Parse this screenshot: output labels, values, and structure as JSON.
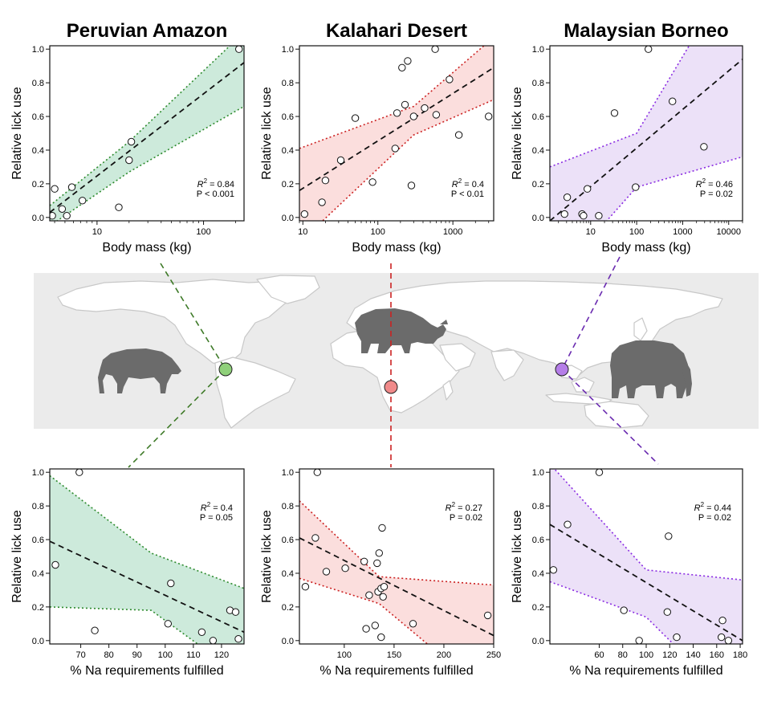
{
  "chart_data": [
    {
      "type": "scatter",
      "title": "Peruvian Amazon",
      "xlabel": "Body mass (kg)",
      "ylabel": "Relative lick use",
      "xscale": "log",
      "xlim": [
        3.6,
        240
      ],
      "ylim": [
        -0.02,
        1.02
      ],
      "xticks": [
        10,
        100
      ],
      "yticks": [
        0.0,
        0.2,
        0.4,
        0.6,
        0.8,
        1.0
      ],
      "ytick_labels": [
        "0.0",
        "0.2",
        "0.4",
        "0.6",
        "0.8",
        "1.0"
      ],
      "points": [
        [
          3.8,
          0.01
        ],
        [
          4.0,
          0.17
        ],
        [
          4.7,
          0.05
        ],
        [
          5.2,
          0.01
        ],
        [
          5.8,
          0.18
        ],
        [
          7.3,
          0.1
        ],
        [
          16,
          0.06
        ],
        [
          20,
          0.34
        ],
        [
          21,
          0.45
        ],
        [
          215,
          1.0
        ]
      ],
      "fit": [
        [
          3.6,
          0.03
        ],
        [
          240,
          0.92
        ]
      ],
      "ci_upper": [
        [
          3.6,
          0.07
        ],
        [
          20,
          0.45
        ],
        [
          240,
          1.1
        ]
      ],
      "ci_lower": [
        [
          3.6,
          -0.05
        ],
        [
          20,
          0.27
        ],
        [
          240,
          0.66
        ]
      ],
      "stat_r2": "0.84",
      "stat_p": "P < 0.001",
      "color": "#2e8b2e",
      "fill": "#cdeadb"
    },
    {
      "type": "scatter",
      "title": "Kalahari Desert",
      "xlabel": "Body mass (kg)",
      "ylabel": "Relative lick use",
      "xscale": "log",
      "xlim": [
        9,
        3500
      ],
      "ylim": [
        -0.02,
        1.02
      ],
      "xticks": [
        10,
        100,
        1000
      ],
      "yticks": [
        0.0,
        0.2,
        0.4,
        0.6,
        0.8,
        1.0
      ],
      "ytick_labels": [
        "0.0",
        "0.2",
        "0.4",
        "0.6",
        "0.8",
        "1.0"
      ],
      "points": [
        [
          10.5,
          0.02
        ],
        [
          18,
          0.09
        ],
        [
          20,
          0.22
        ],
        [
          32,
          0.34
        ],
        [
          50,
          0.59
        ],
        [
          85,
          0.21
        ],
        [
          170,
          0.41
        ],
        [
          180,
          0.62
        ],
        [
          210,
          0.89
        ],
        [
          230,
          0.67
        ],
        [
          250,
          0.93
        ],
        [
          280,
          0.19
        ],
        [
          300,
          0.6
        ],
        [
          420,
          0.65
        ],
        [
          580,
          1.0
        ],
        [
          600,
          0.61
        ],
        [
          900,
          0.82
        ],
        [
          1200,
          0.49
        ],
        [
          3000,
          0.6
        ]
      ],
      "fit": [
        [
          9,
          0.16
        ],
        [
          3500,
          0.89
        ]
      ],
      "ci_upper": [
        [
          9,
          0.41
        ],
        [
          300,
          0.66
        ],
        [
          3500,
          1.07
        ]
      ],
      "ci_lower": [
        [
          9,
          -0.15
        ],
        [
          300,
          0.49
        ],
        [
          3500,
          0.7
        ]
      ],
      "stat_r2": "0.4",
      "stat_p": "P < 0.01",
      "color": "#cc2222",
      "fill": "#fbdedd"
    },
    {
      "type": "scatter",
      "title": "Malaysian Borneo",
      "xlabel": "Body mass (kg)",
      "ylabel": "Relative lick use",
      "xscale": "log",
      "xlim": [
        1.3,
        20000
      ],
      "ylim": [
        -0.02,
        1.02
      ],
      "xticks": [
        10,
        100,
        1000,
        10000
      ],
      "yticks": [
        0.0,
        0.2,
        0.4,
        0.6,
        0.8,
        1.0
      ],
      "ytick_labels": [
        "0.0",
        "0.2",
        "0.4",
        "0.6",
        "0.8",
        "1.0"
      ],
      "points": [
        [
          2.7,
          0.02
        ],
        [
          3.1,
          0.12
        ],
        [
          6.5,
          0.02
        ],
        [
          7.0,
          0.01
        ],
        [
          8.5,
          0.17
        ],
        [
          15,
          0.01
        ],
        [
          33,
          0.62
        ],
        [
          95,
          0.18
        ],
        [
          180,
          1.0
        ],
        [
          600,
          0.69
        ],
        [
          2900,
          0.42
        ]
      ],
      "fit": [
        [
          1.3,
          -0.02
        ],
        [
          20000,
          0.94
        ]
      ],
      "ci_upper": [
        [
          1.3,
          0.3
        ],
        [
          100,
          0.5
        ],
        [
          20000,
          1.55
        ]
      ],
      "ci_lower": [
        [
          1.3,
          -0.4
        ],
        [
          100,
          0.18
        ],
        [
          20000,
          0.36
        ]
      ],
      "stat_r2": "0.46",
      "stat_p": "P = 0.02",
      "color": "#8a2be2",
      "fill": "#ece1f8"
    },
    {
      "type": "scatter",
      "xlabel": "% Na requirements fulfilled",
      "ylabel": "Relative lick use",
      "xscale": "linear",
      "xlim": [
        59,
        128
      ],
      "ylim": [
        -0.02,
        1.02
      ],
      "xticks": [
        70,
        80,
        90,
        100,
        110,
        120
      ],
      "yticks": [
        0.0,
        0.2,
        0.4,
        0.6,
        0.8,
        1.0
      ],
      "ytick_labels": [
        "0.0",
        "0.2",
        "0.4",
        "0.6",
        "0.8",
        "1.0"
      ],
      "points": [
        [
          61,
          0.45
        ],
        [
          69.5,
          1.0
        ],
        [
          75,
          0.06
        ],
        [
          101,
          0.1
        ],
        [
          102,
          0.34
        ],
        [
          113,
          0.05
        ],
        [
          117,
          0.0
        ],
        [
          123,
          0.18
        ],
        [
          125,
          0.17
        ],
        [
          126,
          0.01
        ]
      ],
      "fit": [
        [
          59,
          0.59
        ],
        [
          128,
          0.05
        ]
      ],
      "ci_upper": [
        [
          59,
          0.98
        ],
        [
          95,
          0.52
        ],
        [
          128,
          0.31
        ]
      ],
      "ci_lower": [
        [
          59,
          0.2
        ],
        [
          95,
          0.18
        ],
        [
          128,
          -0.22
        ]
      ],
      "stat_r2": "0.4",
      "stat_p": "P = 0.05",
      "color": "#2e8b2e",
      "fill": "#cdeadb"
    },
    {
      "type": "scatter",
      "xlabel": "% Na requirements fulfilled",
      "ylabel": "Relative lick use",
      "xscale": "linear",
      "xlim": [
        55,
        250
      ],
      "ylim": [
        -0.02,
        1.02
      ],
      "xticks": [
        100,
        150,
        200,
        250
      ],
      "yticks": [
        0.0,
        0.2,
        0.4,
        0.6,
        0.8,
        1.0
      ],
      "ytick_labels": [
        "0.0",
        "0.2",
        "0.4",
        "0.6",
        "0.8",
        "1.0"
      ],
      "points": [
        [
          61,
          0.32
        ],
        [
          71,
          0.61
        ],
        [
          73,
          1.0
        ],
        [
          82,
          0.41
        ],
        [
          101,
          0.43
        ],
        [
          120,
          0.47
        ],
        [
          122,
          0.07
        ],
        [
          125,
          0.27
        ],
        [
          131,
          0.09
        ],
        [
          133,
          0.46
        ],
        [
          134,
          0.29
        ],
        [
          135,
          0.52
        ],
        [
          137,
          0.31
        ],
        [
          137,
          0.02
        ],
        [
          138,
          0.67
        ],
        [
          139,
          0.26
        ],
        [
          140,
          0.32
        ],
        [
          169,
          0.1
        ],
        [
          244,
          0.15
        ]
      ],
      "fit": [
        [
          55,
          0.61
        ],
        [
          250,
          0.03
        ]
      ],
      "ci_upper": [
        [
          55,
          0.83
        ],
        [
          135,
          0.38
        ],
        [
          250,
          0.33
        ]
      ],
      "ci_lower": [
        [
          55,
          0.37
        ],
        [
          135,
          0.22
        ],
        [
          250,
          -0.35
        ]
      ],
      "stat_r2": "0.27",
      "stat_p": "P = 0.02",
      "color": "#cc2222",
      "fill": "#fbdedd"
    },
    {
      "type": "scatter",
      "xlabel": "% Na requirements fulfilled",
      "ylabel": "Relative lick use",
      "xscale": "linear",
      "xlim": [
        18,
        182
      ],
      "ylim": [
        -0.02,
        1.02
      ],
      "xticks": [
        60,
        80,
        100,
        120,
        140,
        160,
        180
      ],
      "yticks": [
        0.0,
        0.2,
        0.4,
        0.6,
        0.8,
        1.0
      ],
      "ytick_labels": [
        "0.0",
        "0.2",
        "0.4",
        "0.6",
        "0.8",
        "1.0"
      ],
      "points": [
        [
          21,
          0.42
        ],
        [
          33,
          0.69
        ],
        [
          60,
          1.0
        ],
        [
          81,
          0.18
        ],
        [
          94,
          0.0
        ],
        [
          118,
          0.17
        ],
        [
          119,
          0.62
        ],
        [
          126,
          0.02
        ],
        [
          164,
          0.02
        ],
        [
          165,
          0.12
        ],
        [
          170,
          0.0
        ]
      ],
      "fit": [
        [
          18,
          0.69
        ],
        [
          182,
          0.0
        ]
      ],
      "ci_upper": [
        [
          18,
          1.05
        ],
        [
          100,
          0.42
        ],
        [
          182,
          0.36
        ]
      ],
      "ci_lower": [
        [
          18,
          0.35
        ],
        [
          100,
          0.14
        ],
        [
          182,
          -0.43
        ]
      ],
      "stat_r2": "0.44",
      "stat_p": "P = 0.02",
      "color": "#8a2be2",
      "fill": "#ece1f8"
    }
  ],
  "sites": [
    {
      "name": "Peruvian Amazon",
      "color": "#8fd07a"
    },
    {
      "name": "Kalahari Desert",
      "color": "#f08a8a"
    },
    {
      "name": "Malaysian Borneo",
      "color": "#b57ee8"
    }
  ],
  "animals": [
    {
      "icon": "tapir-icon"
    },
    {
      "icon": "rhinoceros-icon"
    },
    {
      "icon": "elephant-icon"
    }
  ],
  "colors": {
    "map_ocean": "#ebebeb",
    "map_land": "#ffffff",
    "map_border": "#c8c8c8",
    "silhouette": "#6b6b6b",
    "green_line": "#3e7a28",
    "red_line": "#cc2222",
    "purple_line": "#6a2bb0"
  }
}
